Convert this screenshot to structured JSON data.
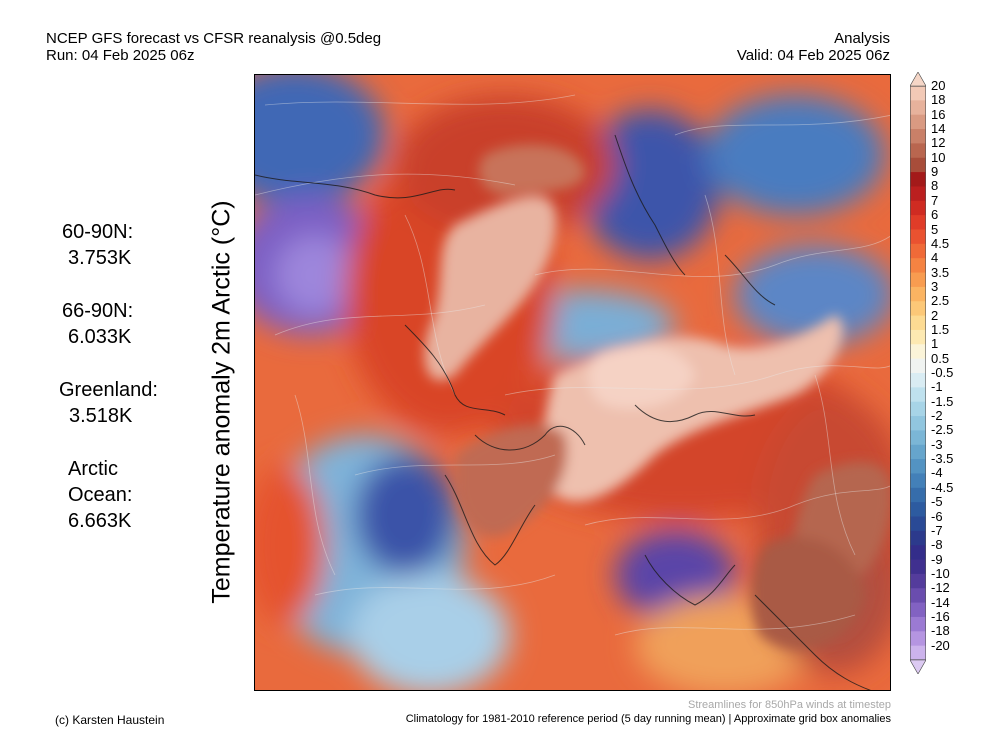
{
  "header": {
    "title_line1": "NCEP GFS forecast vs CFSR reanalysis @0.5deg",
    "title_line2": "Run: 04 Feb 2025 06z",
    "right_line1": "Analysis",
    "right_line2": "Valid: 04 Feb 2025 06z"
  },
  "axis_label": "Temperature anomaly 2m Arctic (°C)",
  "stats": [
    {
      "label": "60-90N:",
      "value": "3.753K"
    },
    {
      "label": "66-90N:",
      "value": "6.033K"
    },
    {
      "label": "Greenland:",
      "value": "3.518K"
    },
    {
      "label": "Arctic",
      "label2": "Ocean:",
      "value": "6.663K"
    }
  ],
  "colorbar": {
    "ticks": [
      "20",
      "18",
      "16",
      "14",
      "12",
      "10",
      "9",
      "8",
      "7",
      "6",
      "5",
      "4.5",
      "4",
      "3.5",
      "3",
      "2.5",
      "2",
      "1.5",
      "1",
      "0.5",
      "-0.5",
      "-1",
      "-1.5",
      "-2",
      "-2.5",
      "-3",
      "-3.5",
      "-4",
      "-4.5",
      "-5",
      "-6",
      "-7",
      "-8",
      "-9",
      "-10",
      "-12",
      "-14",
      "-16",
      "-18",
      "-20"
    ],
    "colors": [
      "#f2c9b6",
      "#e7b29c",
      "#d99a82",
      "#c98068",
      "#b9664f",
      "#a84d3a",
      "#a31a1a",
      "#bb1f1f",
      "#cf2b22",
      "#e03c28",
      "#ea5230",
      "#f06a38",
      "#f58342",
      "#f89c50",
      "#fbb462",
      "#fcc878",
      "#fddb93",
      "#fde9b2",
      "#fbf4d9",
      "#f0f3f1",
      "#d9ecf3",
      "#bfe1ee",
      "#a7d4e7",
      "#91c6df",
      "#7bb6d6",
      "#66a5cc",
      "#5393c2",
      "#4380b8",
      "#366dab",
      "#2d5ba0",
      "#2a4a96",
      "#2c3a8c",
      "#332d8a",
      "#40308f",
      "#543c9c",
      "#6a4dae",
      "#8262c2",
      "#9b7ad3",
      "#b595e1",
      "#ccb3ec"
    ]
  },
  "notes": {
    "streamlines": "Streamlines for 850hPa winds at timestep",
    "credit": "(c) Karsten Haustein",
    "climatology": "Climatology for 1981-2010 reference period (5 day running mean) | Approximate grid box anomalies"
  }
}
